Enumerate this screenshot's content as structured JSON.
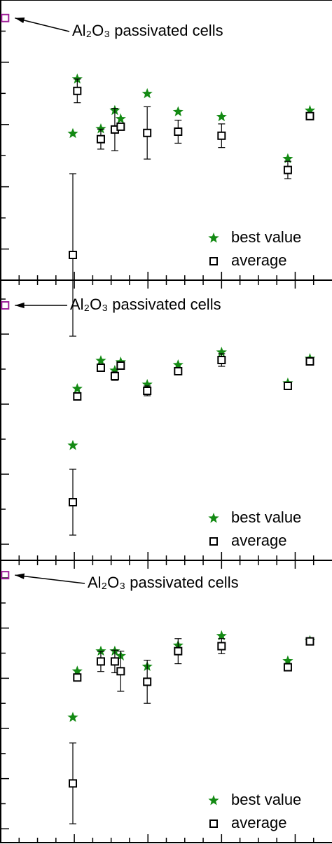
{
  "chart_data": [
    {
      "type": "scatter",
      "annotation": "Al₂O₃ passivated cells",
      "reference_point": {
        "x": 0.06,
        "y": 8.42,
        "color": "#a0209a"
      },
      "x": [
        0.98,
        1.04,
        1.36,
        1.55,
        1.63,
        1.99,
        2.41,
        3.0,
        3.9,
        4.2
      ],
      "series": [
        {
          "name": "best value",
          "color": "#138a13",
          "marker": "star",
          "values": [
            4.71,
            6.46,
            4.86,
            5.45,
            5.18,
            5.99,
            5.41,
            5.25,
            3.9,
            5.45
          ]
        },
        {
          "name": "average",
          "color": "#000000",
          "marker": "square",
          "values": [
            0.81,
            6.08,
            4.53,
            4.84,
            4.93,
            4.73,
            4.77,
            4.64,
            3.54,
            5.27
          ],
          "errors": [
            2.61,
            0.38,
            0.32,
            0.68,
            0.1,
            0.84,
            0.37,
            0.38,
            0.28,
            0.05
          ]
        }
      ],
      "xlim": [
        0,
        4.5
      ],
      "xticks": [
        0.25,
        0.5,
        0.75,
        1,
        1.25,
        1.5,
        1.75,
        2,
        2.25,
        2.5,
        2.75,
        3,
        3.25,
        3.5,
        3.75,
        4,
        4.25
      ],
      "ylim": [
        0,
        9
      ],
      "yticks": [
        1,
        2,
        3,
        4,
        5,
        6,
        7,
        8
      ]
    },
    {
      "type": "scatter",
      "annotation": "Al₂O₃ passivated cells",
      "reference_point": {
        "x": 0.06,
        "y": 7.82,
        "color": "#a0209a"
      },
      "x": [
        0.98,
        1.04,
        1.36,
        1.55,
        1.63,
        1.99,
        2.41,
        3.0,
        3.9,
        4.2
      ],
      "series": [
        {
          "name": "best value",
          "color": "#138a13",
          "marker": "star",
          "values": [
            3.82,
            5.44,
            6.24,
            5.96,
            6.2,
            5.56,
            6.12,
            6.48,
            5.6,
            6.3
          ]
        },
        {
          "name": "average",
          "color": "#000000",
          "marker": "square",
          "values": [
            2.2,
            5.22,
            6.04,
            5.8,
            6.1,
            5.38,
            5.94,
            6.26,
            5.52,
            6.22
          ],
          "errors": [
            0.94,
            0.06,
            0.1,
            0.12,
            0.08,
            0.14,
            0.08,
            0.18,
            0.04,
            0.06
          ]
        }
      ],
      "xlim": [
        0,
        4.5
      ],
      "xticks": [
        0.25,
        0.5,
        0.75,
        1,
        1.25,
        1.5,
        1.75,
        2,
        2.25,
        2.5,
        2.75,
        3,
        3.25,
        3.5,
        3.75,
        4,
        4.25
      ],
      "ylim": [
        0.54,
        8.54
      ],
      "yticks": [
        1,
        2,
        3,
        4,
        5,
        6,
        7,
        8
      ]
    },
    {
      "type": "scatter",
      "annotation": "Al₂O₃ passivated cells",
      "reference_point": {
        "x": 0.06,
        "y": 11.11,
        "color": "#a0209a"
      },
      "x": [
        0.98,
        1.04,
        1.36,
        1.55,
        1.63,
        1.99,
        2.41,
        3.0,
        3.9,
        4.2
      ],
      "series": [
        {
          "name": "best value",
          "color": "#138a13",
          "marker": "star",
          "values": [
            5.44,
            7.28,
            8.08,
            8.08,
            7.89,
            7.47,
            8.31,
            8.69,
            7.69,
            8.5
          ]
        },
        {
          "name": "average",
          "color": "#000000",
          "marker": "square",
          "values": [
            2.81,
            7.03,
            7.67,
            7.67,
            7.28,
            6.86,
            8.08,
            8.28,
            7.44,
            8.47
          ],
          "errors": [
            1.61,
            0.08,
            0.4,
            0.45,
            0.8,
            0.86,
            0.5,
            0.3,
            0.1,
            0.05
          ]
        }
      ],
      "xlim": [
        0,
        4.5
      ],
      "xticks": [
        0.25,
        0.5,
        0.75,
        1,
        1.25,
        1.5,
        1.75,
        2,
        2.25,
        2.5,
        2.75,
        3,
        3.25,
        3.5,
        3.75,
        4,
        4.25
      ],
      "ylim": [
        0.45,
        11.7
      ],
      "yticks": [
        1,
        2,
        3,
        4,
        5,
        6,
        7,
        8,
        9,
        10,
        11
      ]
    }
  ]
}
